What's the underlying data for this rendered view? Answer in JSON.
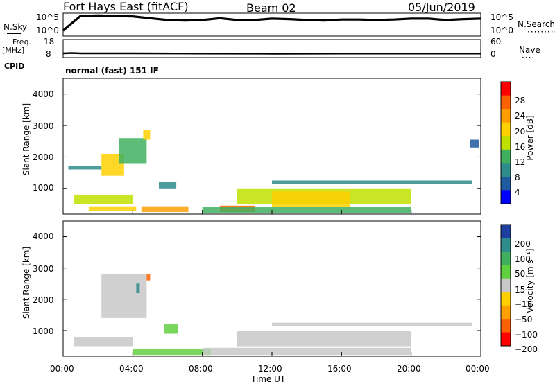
{
  "header": {
    "station": "Fort Hays East (fitACF)",
    "beam": "Beam 02",
    "date": "05/Jun/2019"
  },
  "top_panels": {
    "nsky_label": "N.Sky",
    "nsky_ticks": [
      "10^5",
      "10^0"
    ],
    "nsearch_label": "N.Search",
    "nsearch_ticks": [
      "10^5",
      "10^0"
    ],
    "freq_label": "Freq.",
    "freq_unit": "[MHz]",
    "freq_ticks": [
      "18",
      "8"
    ],
    "nave_label": "Nave",
    "nave_ticks": [
      "60",
      "0"
    ],
    "cpid_label": "CPID",
    "cpid_value": "normal (fast) 151 IF"
  },
  "axes": {
    "ylabel": "Slant Range [km]",
    "yticks": [
      "4000",
      "3000",
      "2000",
      "1000"
    ],
    "xlabel": "Time UT",
    "xticks": [
      "00:00",
      "04:00",
      "08:00",
      "12:00",
      "16:00",
      "20:00",
      "00:00"
    ]
  },
  "power_colorbar": {
    "label": "Power [dB]",
    "ticks": [
      "28",
      "24",
      "20",
      "16",
      "12",
      "8",
      "4"
    ],
    "colors": [
      "#ff0000",
      "#ff6000",
      "#ff9d00",
      "#ffd000",
      "#c0e000",
      "#40b060",
      "#2e8c8c",
      "#1e5aa0",
      "#0000ff"
    ]
  },
  "velocity_colorbar": {
    "label": "Velocity [m s⁻¹]",
    "ticks": [
      "200",
      "100",
      "50",
      "15",
      "−15",
      "−50",
      "−100",
      "−200"
    ],
    "colors": [
      "#1f3fa0",
      "#2e8c8c",
      "#40b060",
      "#60d040",
      "#c8c8c8",
      "#ffd000",
      "#ffa000",
      "#ff6000",
      "#ff0000"
    ]
  },
  "chart_data": [
    {
      "type": "line",
      "title": "N.Sky / N.Search",
      "x": [
        0,
        0.5,
        1,
        2,
        3,
        4,
        5,
        6,
        7,
        8,
        9,
        10,
        11,
        12,
        13,
        14,
        15,
        16,
        17,
        18,
        19,
        20,
        21,
        22,
        23,
        24
      ],
      "series": [
        {
          "name": "N.Sky",
          "values": [
            1.2,
            2.8,
            4.4,
            4.5,
            4.4,
            4.3,
            3.9,
            3.5,
            3.4,
            3.5,
            3.9,
            3.5,
            3.5,
            3.8,
            3.7,
            3.5,
            3.4,
            3.6,
            3.6,
            3.5,
            3.6,
            3.8,
            3.8,
            3.5,
            3.7,
            3.8
          ]
        }
      ],
      "ylim": [
        0,
        5
      ]
    },
    {
      "type": "line",
      "title": "Freq. / Nave",
      "x": [
        0,
        0.5,
        1,
        4,
        8,
        12,
        16,
        20,
        24
      ],
      "series": [
        {
          "name": "Freq.",
          "values": [
            10.3,
            10.5,
            10.3,
            10.3,
            10.2,
            10.1,
            10.2,
            10.2,
            10.2
          ]
        }
      ],
      "ylim": [
        8,
        18
      ]
    },
    {
      "type": "heatmap",
      "title": "Power [dB]",
      "xlim": [
        0,
        24
      ],
      "ylim": [
        180,
        4500
      ],
      "series": [
        {
          "x": [
            2.2,
            3.5
          ],
          "y": [
            1400,
            2100
          ],
          "value": 22
        },
        {
          "x": [
            3.2,
            4.8
          ],
          "y": [
            1800,
            2600
          ],
          "value": 14
        },
        {
          "x": [
            4.6,
            5.0
          ],
          "y": [
            2550,
            2850
          ],
          "value": 20
        },
        {
          "x": [
            0.3,
            2.2
          ],
          "y": [
            1600,
            1700
          ],
          "value": 8
        },
        {
          "x": [
            0.6,
            4.0
          ],
          "y": [
            500,
            800
          ],
          "value": 16
        },
        {
          "x": [
            1.5,
            4.2
          ],
          "y": [
            270,
            430
          ],
          "value": 20
        },
        {
          "x": [
            4.5,
            7.2
          ],
          "y": [
            250,
            430
          ],
          "value": 24
        },
        {
          "x": [
            5.5,
            6.5
          ],
          "y": [
            1000,
            1200
          ],
          "value": 10
        },
        {
          "x": [
            9.0,
            11.0
          ],
          "y": [
            250,
            450
          ],
          "value": 28
        },
        {
          "x": [
            10.0,
            20.0
          ],
          "y": [
            500,
            1000
          ],
          "value": 16
        },
        {
          "x": [
            12.0,
            16.5
          ],
          "y": [
            400,
            900
          ],
          "value": 22
        },
        {
          "x": [
            8.0,
            20.0
          ],
          "y": [
            220,
            400
          ],
          "value": 12
        },
        {
          "x": [
            12.0,
            23.5
          ],
          "y": [
            1150,
            1250
          ],
          "value": 8
        },
        {
          "x": [
            23.4,
            23.9
          ],
          "y": [
            2300,
            2550
          ],
          "value": 6
        }
      ]
    },
    {
      "type": "heatmap",
      "title": "Velocity [m s⁻¹]",
      "xlim": [
        0,
        24
      ],
      "ylim": [
        180,
        4500
      ],
      "series": [
        {
          "x": [
            2.2,
            4.8
          ],
          "y": [
            1400,
            2800
          ],
          "value": 0
        },
        {
          "x": [
            0.6,
            4.0
          ],
          "y": [
            500,
            800
          ],
          "value": 0
        },
        {
          "x": [
            5.8,
            6.6
          ],
          "y": [
            900,
            1200
          ],
          "value": 50
        },
        {
          "x": [
            4.0,
            8.5
          ],
          "y": [
            220,
            420
          ],
          "value": 50
        },
        {
          "x": [
            10.0,
            20.0
          ],
          "y": [
            500,
            1000
          ],
          "value": 0
        },
        {
          "x": [
            8.0,
            20.0
          ],
          "y": [
            220,
            450
          ],
          "value": -30
        },
        {
          "x": [
            12.0,
            23.5
          ],
          "y": [
            1150,
            1250
          ],
          "value": 0
        },
        {
          "x": [
            4.2,
            4.4
          ],
          "y": [
            2200,
            2500
          ],
          "value": 200
        },
        {
          "x": [
            4.8,
            5.0
          ],
          "y": [
            2600,
            2800
          ],
          "value": -200
        }
      ]
    }
  ]
}
